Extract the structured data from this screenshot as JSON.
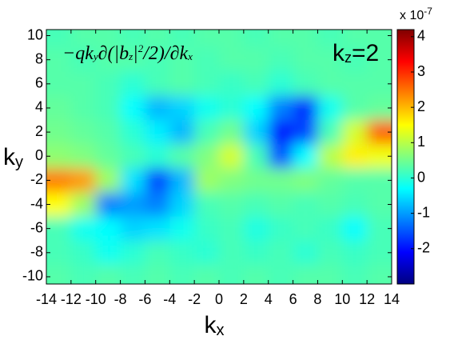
{
  "chart_data": {
    "type": "heatmap",
    "title": [
      {
        "text": "−qk"
      },
      {
        "text": "y",
        "script": "sub"
      },
      {
        "text": "∂(|b"
      },
      {
        "text": "z",
        "script": "sub"
      },
      {
        "text": "|"
      },
      {
        "text": "2",
        "script": "sup"
      },
      {
        "text": "/2)/∂k"
      },
      {
        "text": "x",
        "script": "sub"
      }
    ],
    "annotation": [
      {
        "text": "k"
      },
      {
        "text": "z",
        "script": "sub"
      },
      {
        "text": "=2"
      }
    ],
    "x_label": [
      {
        "text": "k"
      },
      {
        "text": "x",
        "script": "sub"
      }
    ],
    "y_label": [
      {
        "text": "k"
      },
      {
        "text": "y",
        "script": "sub"
      }
    ],
    "colorbar_label": [
      {
        "text": "x 10"
      },
      {
        "text": "-7",
        "script": "sup"
      }
    ],
    "x": [
      -13,
      -11,
      -9,
      -7,
      -5,
      -3,
      -1,
      1,
      3,
      5,
      7,
      9,
      11,
      13
    ],
    "y": [
      10,
      8,
      6,
      4,
      2,
      0,
      -2,
      -4,
      -6,
      -8,
      -10
    ],
    "z": [
      [
        0.2,
        0.3,
        0.3,
        0.2,
        0.3,
        0.2,
        0.3,
        0.3,
        0.2,
        0.3,
        0.3,
        0.2,
        0.3,
        0.3
      ],
      [
        0.3,
        0.2,
        0.3,
        0.3,
        0.2,
        0.3,
        0.2,
        0.3,
        0.3,
        0.2,
        0.3,
        0.3,
        0.2,
        0.3
      ],
      [
        0.3,
        0.3,
        0.2,
        0,
        0.2,
        0.3,
        0.2,
        0.1,
        0.2,
        0,
        0.2,
        0.3,
        0.3,
        0.3
      ],
      [
        0.4,
        0.3,
        0.2,
        -0.3,
        -0.8,
        -0.6,
        -0.2,
        0,
        -0.3,
        -1.2,
        -1.8,
        -0.2,
        0.3,
        0.4
      ],
      [
        0.5,
        0.4,
        0.3,
        0,
        -0.4,
        -0.8,
        0.2,
        0.5,
        -0.6,
        -2.0,
        -1.6,
        0.2,
        1.2,
        2.6
      ],
      [
        0.7,
        0.6,
        0.4,
        0.2,
        0,
        0.3,
        0.6,
        1.2,
        0.2,
        -1.5,
        -0.3,
        1.0,
        1.6,
        1.4
      ],
      [
        2.4,
        2.2,
        0.8,
        -0.5,
        -1.6,
        -0.8,
        0.8,
        0.6,
        0.5,
        0.5,
        0.6,
        0.4,
        0.3,
        0.3
      ],
      [
        1.5,
        0.8,
        -1.2,
        -1.0,
        -1.2,
        -0.6,
        0.2,
        0.3,
        0.2,
        0.3,
        0.2,
        0.3,
        0.2,
        0.3
      ],
      [
        0.2,
        -0.2,
        -0.3,
        -0.6,
        -0.5,
        -0.2,
        0.1,
        0.2,
        -0.1,
        0.1,
        0.2,
        0.1,
        -0.3,
        0.2
      ],
      [
        0.2,
        0.1,
        -0.2,
        0,
        0.2,
        0.1,
        0,
        0.2,
        0.1,
        0.2,
        0,
        0.2,
        0.1,
        0.2
      ],
      [
        0.3,
        0.2,
        0.3,
        0.2,
        0.3,
        0.2,
        0.3,
        0.2,
        0.3,
        0.2,
        0.3,
        0.3,
        0.2,
        0.3
      ]
    ],
    "xlim": [
      -14,
      14
    ],
    "ylim": [
      -10.6,
      10.5
    ],
    "xticks": [
      -14,
      -12,
      -10,
      -8,
      -6,
      -4,
      -2,
      0,
      2,
      4,
      6,
      8,
      10,
      12,
      14
    ],
    "yticks": [
      -10,
      -8,
      -6,
      -4,
      -2,
      0,
      2,
      4,
      6,
      8,
      10
    ],
    "clim": [
      -3,
      4.2
    ],
    "cticks": [
      -2,
      -1,
      0,
      1,
      2,
      3,
      4
    ],
    "colormap": "jet"
  }
}
